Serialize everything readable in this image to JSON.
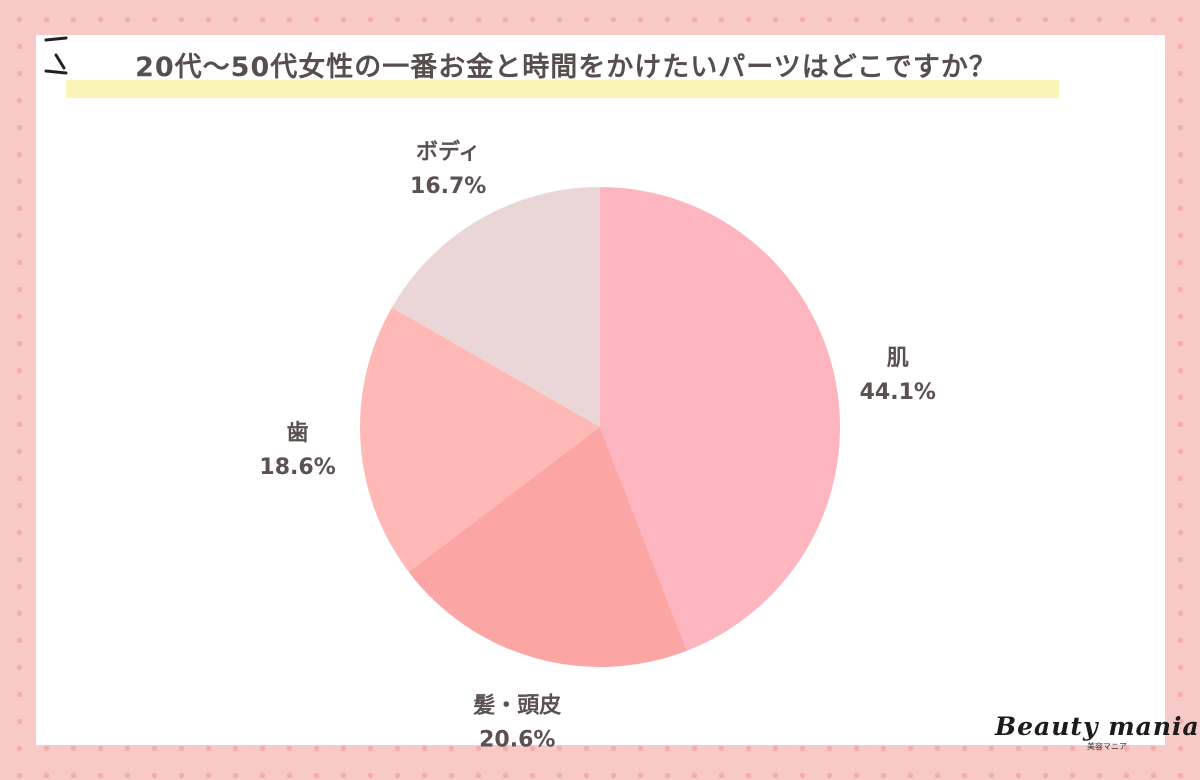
{
  "title": "20代〜50代女性の一番お金と時間をかけたいパーツはどこですか？",
  "colors": {
    "background": "#f7c9c7",
    "dots": "#f2aeac",
    "highlight": "#fbf4b7",
    "text": "#5b5151"
  },
  "chart_data": {
    "type": "pie",
    "title": "20代〜50代女性の一番お金と時間をかけたいパーツはどこですか？",
    "start_angle": "12 o'clock",
    "direction": "clockwise",
    "slices": [
      {
        "label": "肌",
        "value": 44.1,
        "value_label": "44.1%",
        "color": "#fdb6c0"
      },
      {
        "label": "髪・頭皮",
        "value": 20.6,
        "value_label": "20.6%",
        "color": "#fca5a5"
      },
      {
        "label": "歯",
        "value": 18.6,
        "value_label": "18.6%",
        "color": "#feb9b6"
      },
      {
        "label": "ボディ",
        "value": 16.7,
        "value_label": "16.7%",
        "color": "#ead6d6"
      }
    ]
  },
  "logo": {
    "main": "Beauty mania",
    "sub": "美容マニア"
  }
}
